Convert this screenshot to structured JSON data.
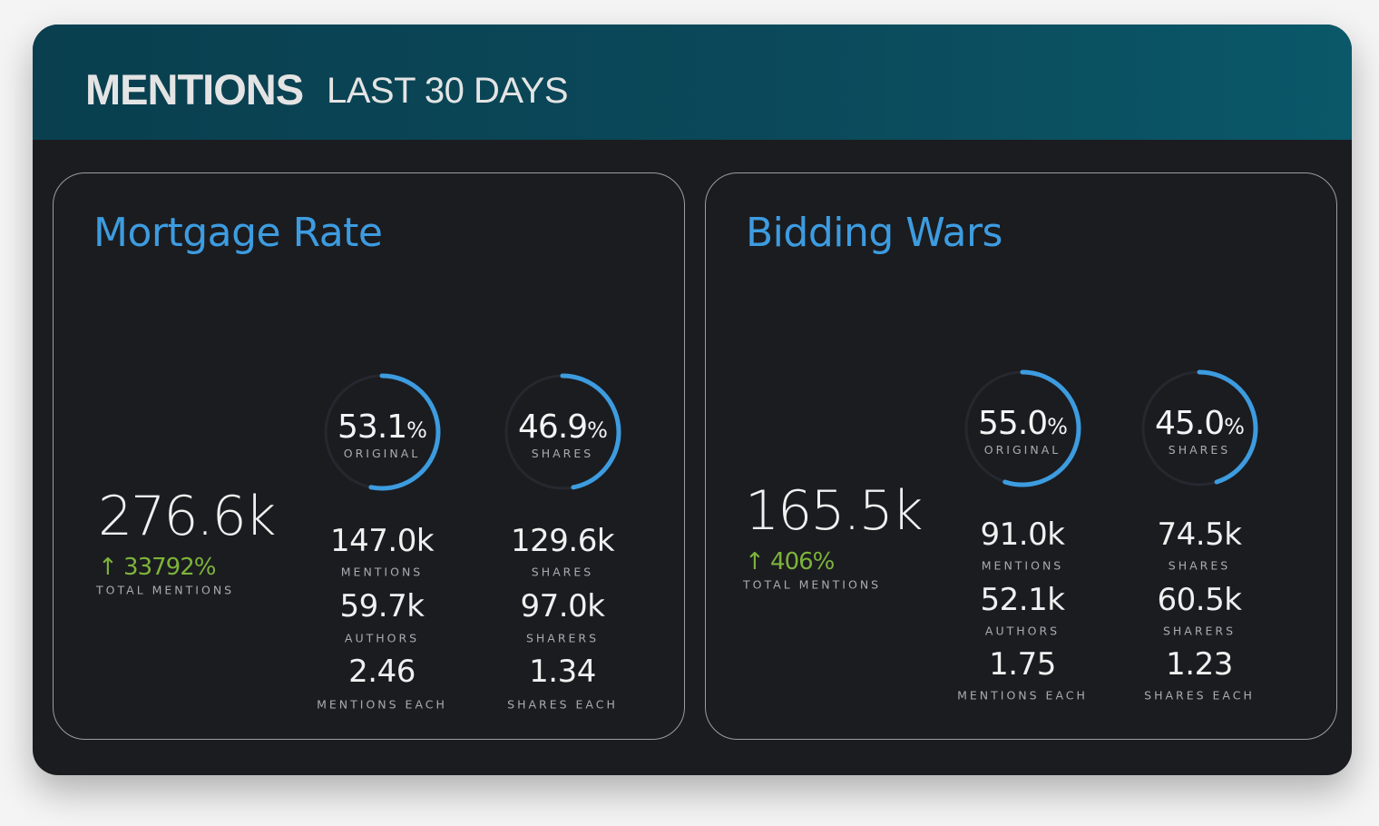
{
  "header": {
    "title": "MENTIONS",
    "subtitle": "LAST 30 DAYS"
  },
  "colors": {
    "accent": "#3d9ce0",
    "growth": "#7db33a",
    "track": "#26282f"
  },
  "topics": [
    {
      "title": "Mortgage Rate",
      "total": "276.6k",
      "growth": "↑ 33792%",
      "total_label": "TOTAL MENTIONS",
      "gauges": [
        {
          "value": 53.1,
          "pct": "53.1",
          "unit": "%",
          "label": "ORIGINAL"
        },
        {
          "value": 46.9,
          "pct": "46.9",
          "unit": "%",
          "label": "SHARES"
        }
      ],
      "stats_left": [
        {
          "value": "147.0k",
          "label": "MENTIONS"
        },
        {
          "value": "59.7k",
          "label": "AUTHORS"
        },
        {
          "value": "2.46",
          "label": "MENTIONS EACH"
        }
      ],
      "stats_right": [
        {
          "value": "129.6k",
          "label": "SHARES"
        },
        {
          "value": "97.0k",
          "label": "SHARERS"
        },
        {
          "value": "1.34",
          "label": "SHARES EACH"
        }
      ]
    },
    {
      "title": "Bidding Wars",
      "total": "165.5k",
      "growth": "↑ 406%",
      "total_label": "TOTAL MENTIONS",
      "gauges": [
        {
          "value": 55.0,
          "pct": "55.0",
          "unit": "%",
          "label": "ORIGINAL"
        },
        {
          "value": 45.0,
          "pct": "45.0",
          "unit": "%",
          "label": "SHARES"
        }
      ],
      "stats_left": [
        {
          "value": "91.0k",
          "label": "MENTIONS"
        },
        {
          "value": "52.1k",
          "label": "AUTHORS"
        },
        {
          "value": "1.75",
          "label": "MENTIONS EACH"
        }
      ],
      "stats_right": [
        {
          "value": "74.5k",
          "label": "SHARES"
        },
        {
          "value": "60.5k",
          "label": "SHARERS"
        },
        {
          "value": "1.23",
          "label": "SHARES EACH"
        }
      ]
    }
  ]
}
